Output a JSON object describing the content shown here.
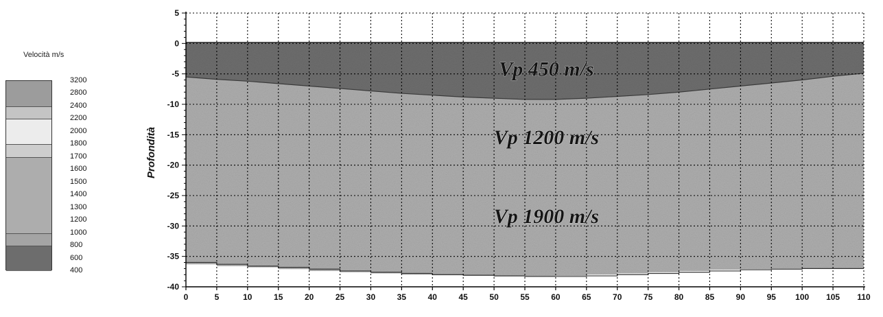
{
  "legend": {
    "title": "Velocità m/s",
    "labels": [
      "3200",
      "2800",
      "2400",
      "2200",
      "2000",
      "1800",
      "1700",
      "1600",
      "1500",
      "1400",
      "1300",
      "1200",
      "1000",
      "800",
      "600",
      "400"
    ],
    "bands": [
      {
        "from": 3200,
        "to": 2400,
        "color": "#9c9c9c"
      },
      {
        "from": 2400,
        "to": 2200,
        "color": "#c4c4c4"
      },
      {
        "from": 2200,
        "to": 1800,
        "color": "#ececec"
      },
      {
        "from": 1800,
        "to": 1700,
        "color": "#cdcdcd"
      },
      {
        "from": 1700,
        "to": 1000,
        "color": "#adadad"
      },
      {
        "from": 1000,
        "to": 800,
        "color": "#a4a4a4"
      },
      {
        "from": 800,
        "to": 400,
        "color": "#6d6d6d"
      }
    ]
  },
  "chart_data": {
    "type": "area",
    "ylabel": "Profondità",
    "xlabel": "",
    "xlim": [
      0,
      110
    ],
    "ylim": [
      -40,
      5
    ],
    "xticks": [
      0,
      5,
      10,
      15,
      20,
      25,
      30,
      35,
      40,
      45,
      50,
      55,
      60,
      65,
      70,
      75,
      80,
      85,
      90,
      95,
      100,
      105,
      110
    ],
    "yticks": [
      5,
      0,
      -5,
      -10,
      -15,
      -20,
      -25,
      -30,
      -35,
      -40
    ],
    "grid": true,
    "surface_depth": 0.2,
    "layers": [
      {
        "name": "Vp 450 m/s",
        "velocity": 450,
        "color": "#6e6e6e"
      },
      {
        "name": "Vp 1200 m/s",
        "velocity": 1200,
        "color": "#a9a9a9"
      },
      {
        "name": "Vp 1900 m/s",
        "velocity": 1900,
        "color": "#aeaeae"
      }
    ],
    "interface_1": {
      "x": [
        0,
        5,
        10,
        15,
        20,
        25,
        30,
        35,
        40,
        45,
        50,
        55,
        60,
        65,
        70,
        75,
        80,
        85,
        90,
        95,
        100,
        105,
        110
      ],
      "y": [
        -5.5,
        -5.9,
        -6.2,
        -6.6,
        -7.0,
        -7.4,
        -7.8,
        -8.2,
        -8.5,
        -8.8,
        -9.0,
        -9.2,
        -9.2,
        -9.0,
        -8.7,
        -8.4,
        -8.0,
        -7.5,
        -7.0,
        -6.5,
        -6.0,
        -5.4,
        -4.9
      ]
    },
    "bottom_boundary": {
      "x": [
        0,
        5,
        10,
        15,
        20,
        25,
        30,
        35,
        40,
        45,
        50,
        55,
        60,
        65,
        70,
        75,
        80,
        85,
        90,
        95,
        100,
        105,
        110
      ],
      "y": [
        -36.0,
        -36.3,
        -36.6,
        -36.8,
        -37.1,
        -37.4,
        -37.6,
        -37.8,
        -38.0,
        -38.1,
        -38.2,
        -38.3,
        -38.3,
        -38.2,
        -38.0,
        -37.8,
        -37.6,
        -37.4,
        -37.2,
        -37.1,
        -37.0,
        -37.0,
        -37.0
      ]
    },
    "annotations": [
      {
        "text": "Vp 450 m/s",
        "x": 58.5,
        "y": -4.2
      },
      {
        "text": "Vp 1200 m/s",
        "x": 58.5,
        "y": -15.4
      },
      {
        "text": "Vp 1900 m/s",
        "x": 58.5,
        "y": -28.4
      }
    ]
  }
}
